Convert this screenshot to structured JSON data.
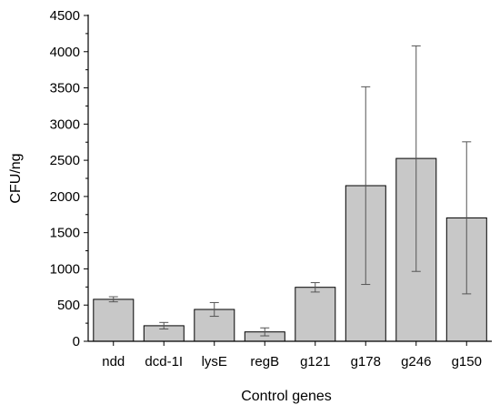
{
  "chart_data": {
    "type": "bar",
    "categories": [
      "ndd",
      "dcd-1I",
      "lysE",
      "regB",
      "g121",
      "g178",
      "g246",
      "g150"
    ],
    "values": [
      580,
      215,
      440,
      130,
      745,
      2150,
      2525,
      1705
    ],
    "error_low": [
      545,
      170,
      345,
      75,
      680,
      785,
      965,
      655
    ],
    "error_high": [
      615,
      260,
      535,
      185,
      810,
      3515,
      4080,
      2755
    ],
    "xlabel": "Control genes",
    "ylabel": "CFU/ng",
    "ylim": [
      0,
      4500
    ],
    "yticks": [
      0,
      500,
      1000,
      1500,
      2000,
      2500,
      3000,
      3500,
      4000,
      4500
    ],
    "grid": false,
    "bar_color": "#c8c8c8",
    "edge_color": "#000000"
  }
}
